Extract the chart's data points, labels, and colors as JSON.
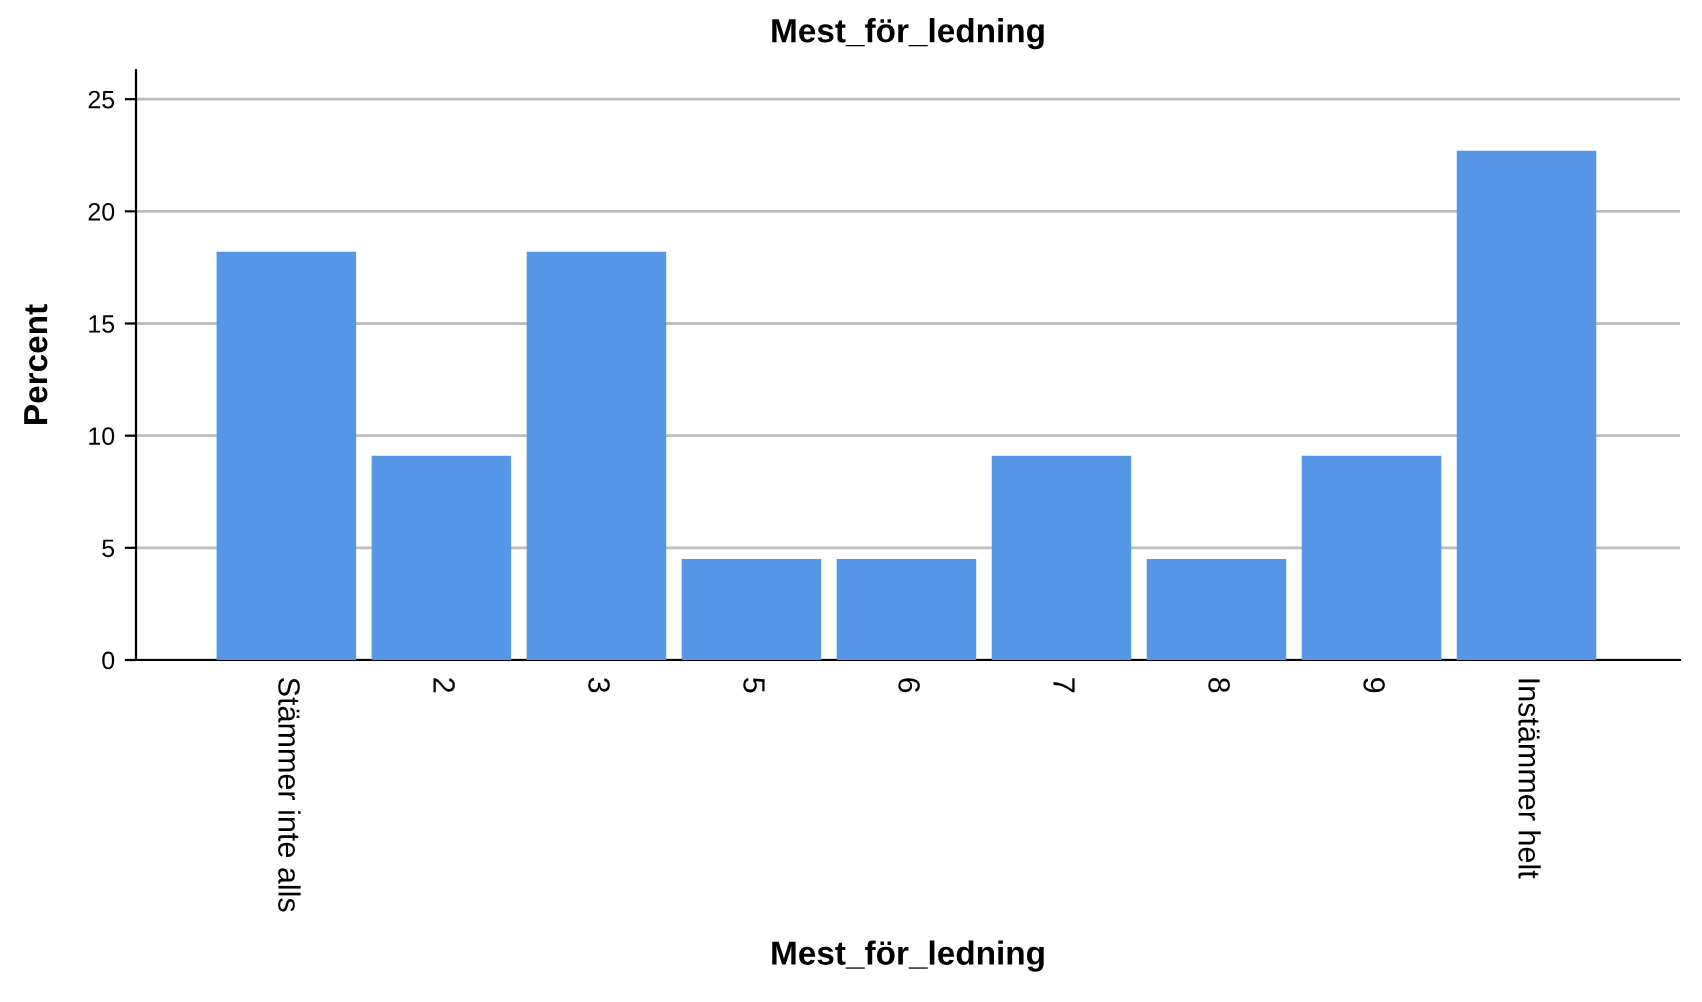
{
  "chart_data": {
    "type": "bar",
    "title": "Mest_för_ledning",
    "xlabel": "Mest_för_ledning",
    "ylabel": "Percent",
    "categories": [
      "Stämmer inte alls",
      "2",
      "3",
      "5",
      "6",
      "7",
      "8",
      "9",
      "Instämmer helt"
    ],
    "values": [
      18.2,
      9.1,
      18.2,
      4.5,
      4.5,
      9.1,
      4.5,
      9.1,
      22.7
    ],
    "color": "#5596e6",
    "ylim": [
      0,
      26.3
    ],
    "yticks": [
      0,
      5,
      10,
      15,
      20,
      25
    ],
    "grid": "y"
  }
}
